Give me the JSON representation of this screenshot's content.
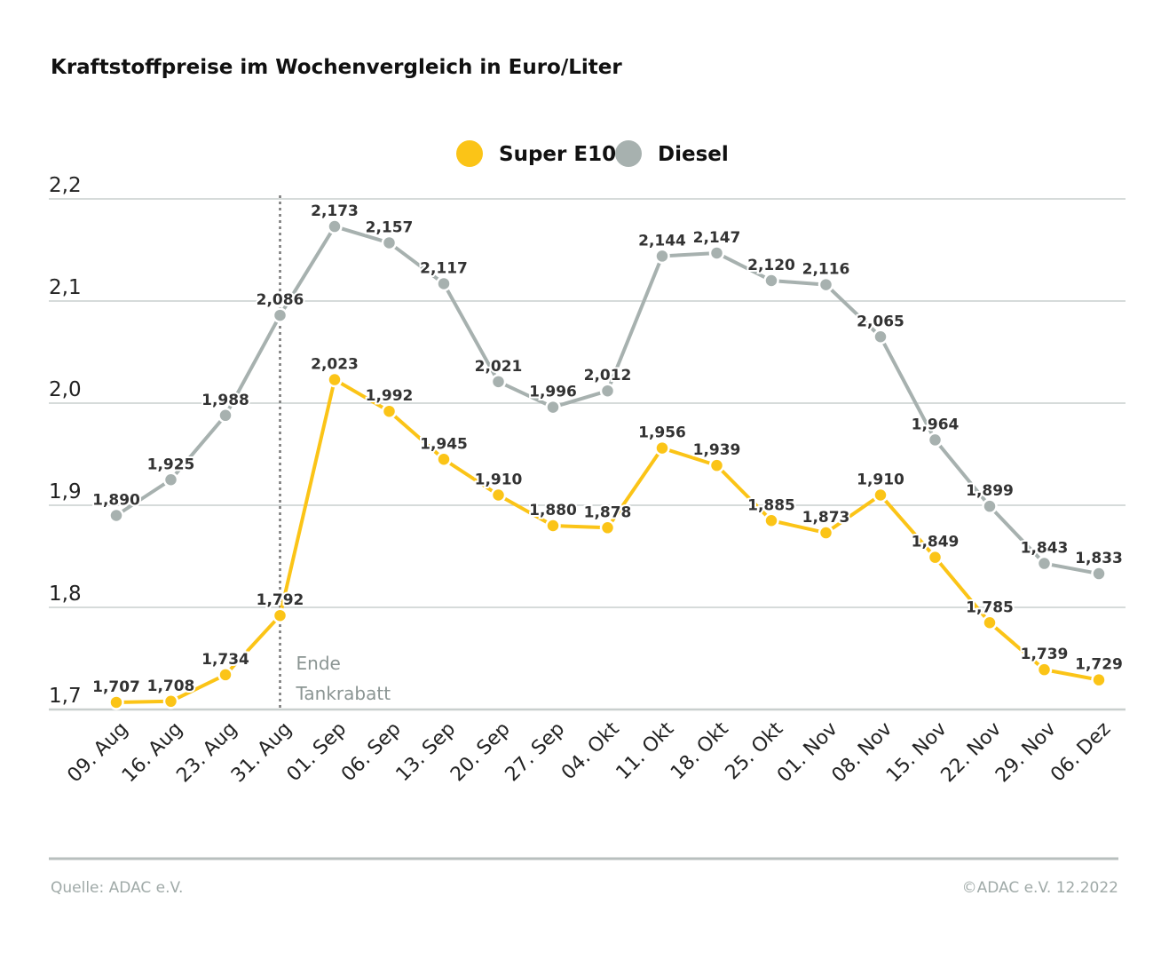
{
  "chart_data": {
    "type": "line",
    "title": "Kraftstoffpreise im Wochenvergleich in Euro/Liter",
    "categories": [
      "09. Aug",
      "16. Aug",
      "23. Aug",
      "31. Aug",
      "01. Sep",
      "06. Sep",
      "13. Sep",
      "20. Sep",
      "27. Sep",
      "04. Okt",
      "11. Okt",
      "18. Okt",
      "25. Okt",
      "01. Nov",
      "08. Nov",
      "15. Nov",
      "22. Nov",
      "29. Nov",
      "06. Dez"
    ],
    "series": [
      {
        "name": "Super E10",
        "color": "#fbc417",
        "values": [
          1.707,
          1.708,
          1.734,
          1.792,
          2.023,
          1.992,
          1.945,
          1.91,
          1.88,
          1.878,
          1.956,
          1.939,
          1.885,
          1.873,
          1.91,
          1.849,
          1.785,
          1.739,
          1.729
        ]
      },
      {
        "name": "Diesel",
        "color": "#a7b1af",
        "values": [
          1.89,
          1.925,
          1.988,
          2.086,
          2.173,
          2.157,
          2.117,
          2.021,
          1.996,
          2.012,
          2.144,
          2.147,
          2.12,
          2.116,
          2.065,
          1.964,
          1.899,
          1.843,
          1.833
        ]
      }
    ],
    "yticks": [
      "2,2",
      "2,1",
      "2,0",
      "1,9",
      "1,8",
      "1,7"
    ],
    "ytick_values": [
      2.2,
      2.1,
      2.0,
      1.9,
      1.8,
      1.7
    ],
    "ylim": [
      1.7,
      2.2
    ],
    "grid": true,
    "legend_position": "top-center",
    "annotation": {
      "category": "31. Aug",
      "lines": [
        "Ende",
        "Tankrabatt"
      ]
    }
  },
  "footer": {
    "source": "Quelle: ADAC e.V.",
    "copyright": "©ADAC e.V.  12.2022"
  }
}
